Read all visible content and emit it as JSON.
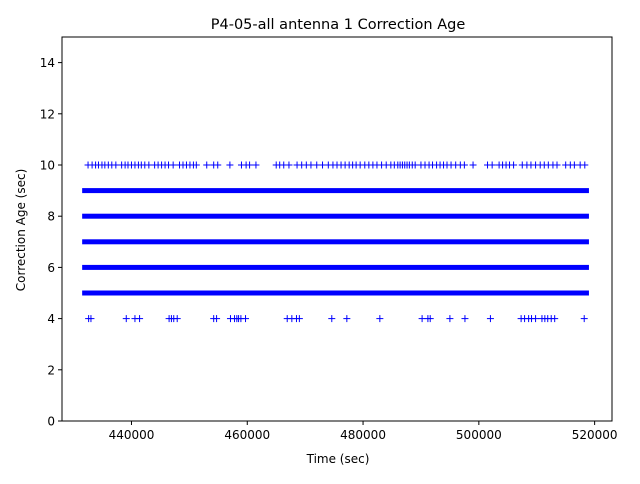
{
  "chart_data": {
    "type": "scatter",
    "title": "P4-05-all antenna 1 Correction Age",
    "xlabel": "Time (sec)",
    "ylabel": "Correction Age (sec)",
    "xlim": [
      428000,
      523000
    ],
    "ylim": [
      0,
      15
    ],
    "xticks": [
      440000,
      460000,
      480000,
      500000,
      520000
    ],
    "yticks": [
      0,
      2,
      4,
      6,
      8,
      10,
      12,
      14
    ],
    "marker": "+",
    "color": "#0000ff",
    "grid": false,
    "legend": "none",
    "dense_bands": [
      {
        "y": 5,
        "x_range": [
          432000,
          518500
        ]
      },
      {
        "y": 6,
        "x_range": [
          432000,
          518500
        ]
      },
      {
        "y": 7,
        "x_range": [
          432000,
          518500
        ]
      },
      {
        "y": 8,
        "x_range": [
          432000,
          518500
        ]
      },
      {
        "y": 9,
        "x_range": [
          432000,
          518500
        ]
      }
    ],
    "series": [
      {
        "y": 10,
        "x": [
          432500,
          433200,
          433800,
          434300,
          434900,
          435400,
          436000,
          436600,
          437300,
          438300,
          438900,
          439400,
          440000,
          440600,
          441200,
          441700,
          442300,
          443000,
          444000,
          444600,
          445200,
          445800,
          446400,
          447200,
          448300,
          448900,
          449500,
          450100,
          450700,
          451200,
          453000,
          454200,
          454900,
          457000,
          459000,
          459800,
          460400,
          461500,
          465000,
          465600,
          466300,
          467200,
          468600,
          469400,
          470200,
          471000,
          472000,
          473000,
          474000,
          474800,
          475500,
          476200,
          476900,
          477600,
          478200,
          478800,
          479500,
          480300,
          481000,
          481700,
          482400,
          483200,
          484000,
          484800,
          485400,
          486000,
          486400,
          486800,
          487200,
          487600,
          488000,
          488500,
          489000,
          490000,
          490700,
          491400,
          492000,
          492700,
          493300,
          493900,
          494500,
          495200,
          496000,
          496800,
          497500,
          499000,
          501500,
          502300,
          503500,
          504100,
          504700,
          505300,
          506000,
          507500,
          508300,
          509000,
          509800,
          510600,
          511300,
          512000,
          512800,
          513500,
          515000,
          515800,
          516500,
          517500,
          518300
        ]
      },
      {
        "y": 4,
        "x": [
          432600,
          433000,
          439100,
          440600,
          441400,
          446500,
          446900,
          447300,
          447900,
          454200,
          454700,
          457100,
          457800,
          458200,
          458500,
          458900,
          459700,
          466900,
          467700,
          468500,
          469000,
          474600,
          477200,
          482900,
          490200,
          491200,
          491600,
          495000,
          497600,
          502000,
          507300,
          507900,
          508600,
          509100,
          509800,
          510900,
          511400,
          511900,
          512500,
          513100,
          518200
        ]
      }
    ]
  }
}
